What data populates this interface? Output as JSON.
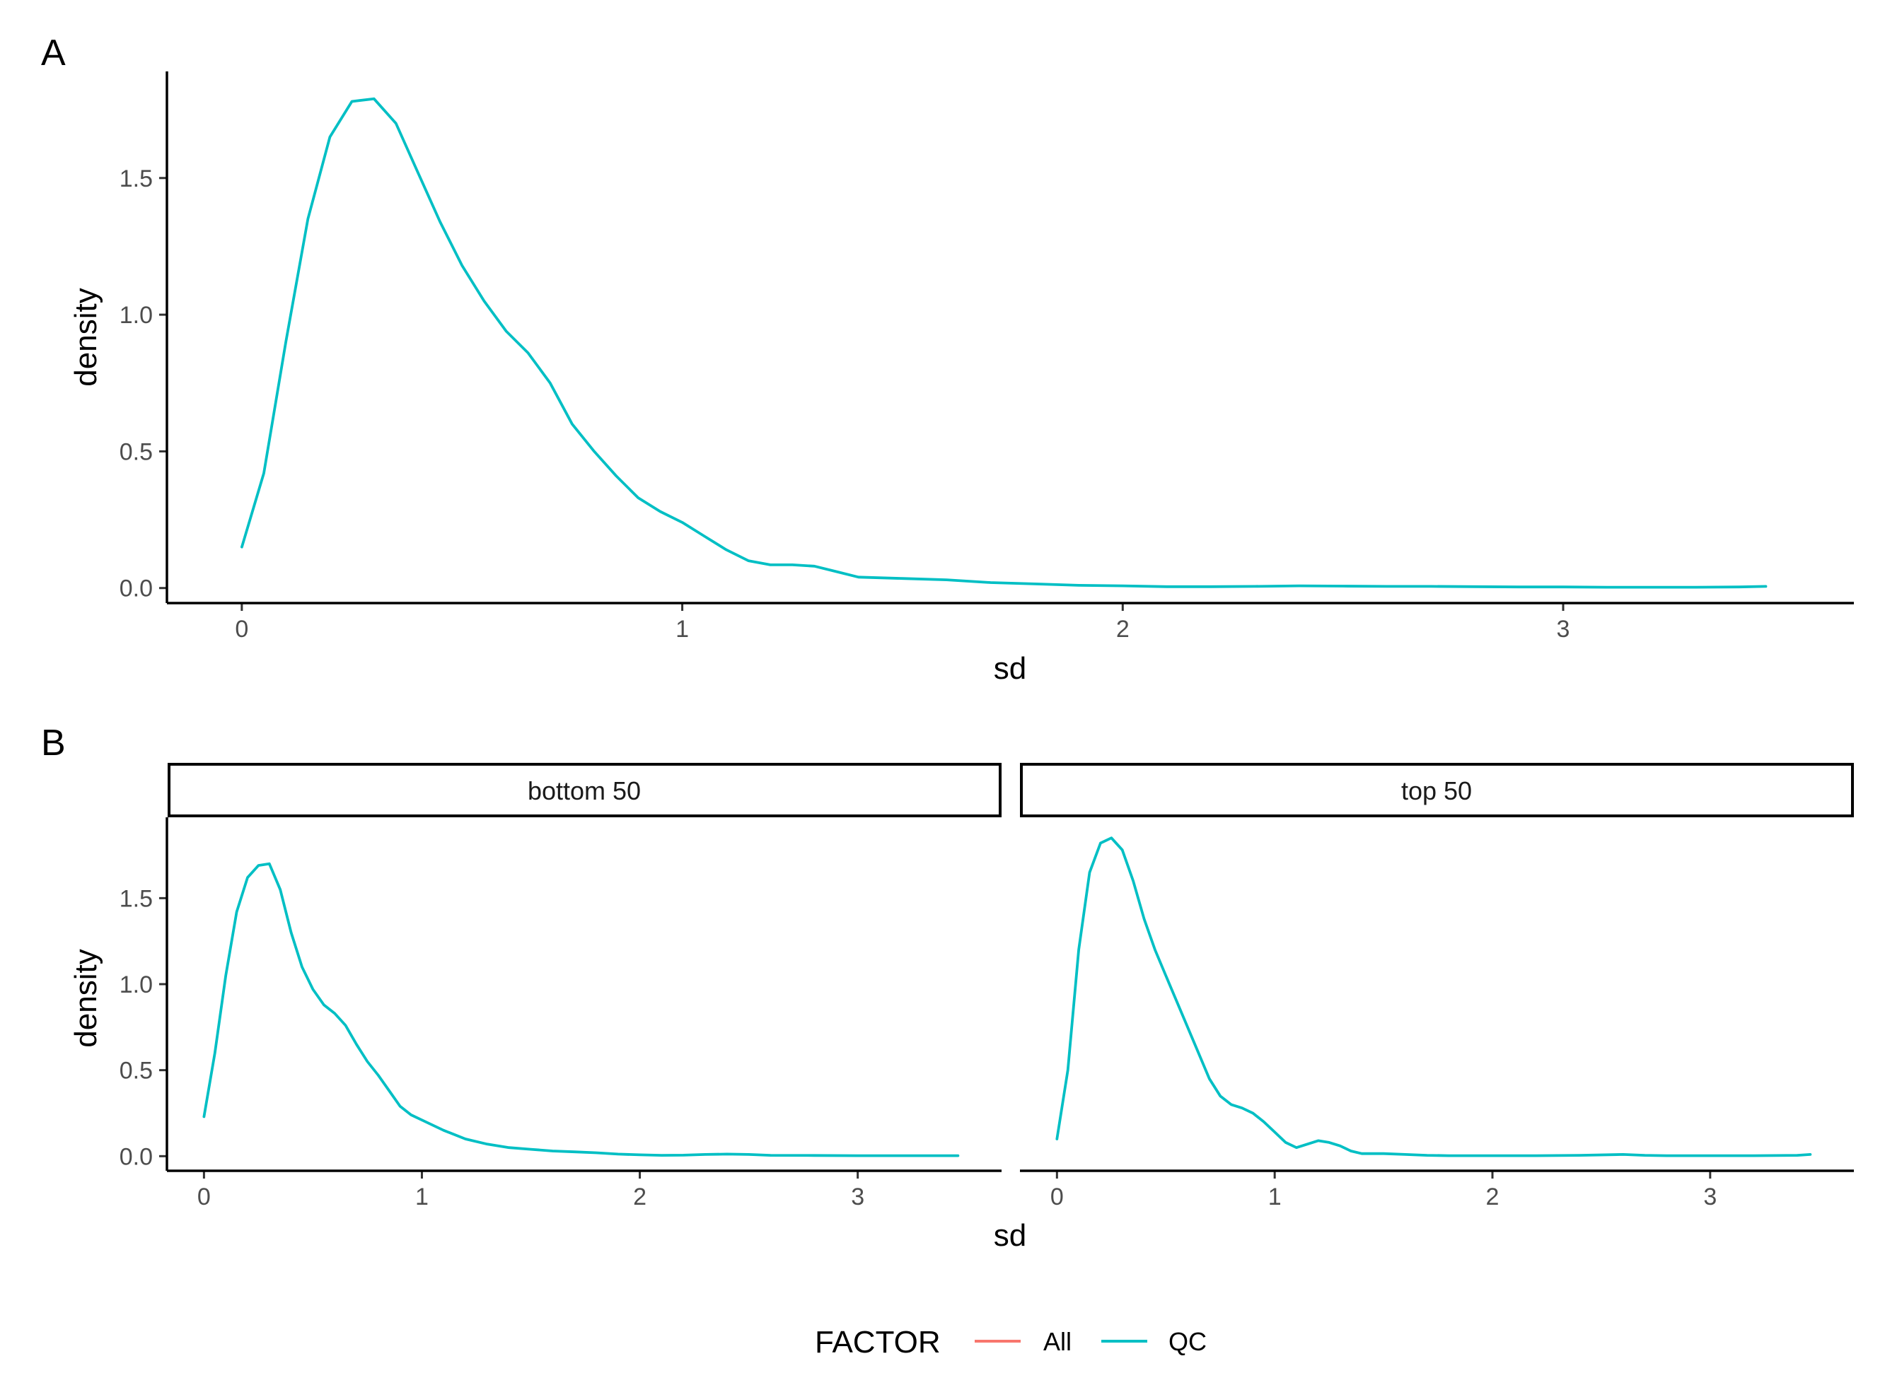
{
  "figure": {
    "panel_a_tag": "A",
    "panel_b_tag": "B"
  },
  "colors": {
    "All": "#F8766D",
    "QC": "#00BFC4"
  },
  "legend": {
    "title": "FACTOR",
    "position": "bottom",
    "items": [
      {
        "label": "All",
        "color": "#F8766D"
      },
      {
        "label": "QC",
        "color": "#00BFC4"
      }
    ]
  },
  "chart_data": [
    {
      "id": "A",
      "type": "line",
      "xlabel": "sd",
      "ylabel": "density",
      "xlim": [
        -0.17,
        3.66
      ],
      "ylim": [
        -0.055,
        1.89
      ],
      "xticks": [
        0,
        1,
        2,
        3
      ],
      "xtick_labels": [
        "0",
        "1",
        "2",
        "3"
      ],
      "yticks": [
        0,
        0.5,
        1,
        1.5
      ],
      "ytick_labels": [
        "0.0",
        "0.5",
        "1.0",
        "1.5"
      ],
      "grid": false,
      "series": [
        {
          "name": "QC",
          "color": "#00BFC4",
          "x": [
            0.0,
            0.05,
            0.1,
            0.15,
            0.2,
            0.25,
            0.3,
            0.35,
            0.4,
            0.45,
            0.5,
            0.55,
            0.6,
            0.65,
            0.7,
            0.75,
            0.8,
            0.85,
            0.9,
            0.95,
            1.0,
            1.05,
            1.1,
            1.15,
            1.2,
            1.25,
            1.3,
            1.35,
            1.4,
            1.5,
            1.6,
            1.7,
            1.8,
            1.9,
            2.0,
            2.1,
            2.2,
            2.3,
            2.4,
            2.5,
            2.6,
            2.7,
            2.8,
            2.9,
            3.0,
            3.1,
            3.2,
            3.3,
            3.4,
            3.46
          ],
          "y": [
            0.15,
            0.42,
            0.9,
            1.35,
            1.65,
            1.78,
            1.79,
            1.7,
            1.52,
            1.34,
            1.18,
            1.05,
            0.94,
            0.86,
            0.75,
            0.6,
            0.5,
            0.41,
            0.33,
            0.28,
            0.24,
            0.19,
            0.14,
            0.1,
            0.085,
            0.085,
            0.08,
            0.06,
            0.04,
            0.035,
            0.03,
            0.02,
            0.015,
            0.01,
            0.008,
            0.005,
            0.005,
            0.006,
            0.008,
            0.007,
            0.006,
            0.006,
            0.005,
            0.004,
            0.004,
            0.003,
            0.003,
            0.003,
            0.004,
            0.006
          ]
        }
      ]
    },
    {
      "id": "B",
      "type": "line",
      "facets": [
        "bottom 50",
        "top 50"
      ],
      "xlabel": "sd",
      "ylabel": "density",
      "xlim": [
        -0.17,
        3.66
      ],
      "ylim": [
        -0.085,
        1.97
      ],
      "xticks": [
        0,
        1,
        2,
        3
      ],
      "xtick_labels": [
        "0",
        "1",
        "2",
        "3"
      ],
      "yticks": [
        0,
        0.5,
        1,
        1.5
      ],
      "ytick_labels": [
        "0.0",
        "0.5",
        "1.0",
        "1.5"
      ],
      "grid": false,
      "series": [
        {
          "facet": "bottom 50",
          "name": "QC",
          "color": "#00BFC4",
          "x": [
            0.0,
            0.05,
            0.1,
            0.15,
            0.2,
            0.25,
            0.3,
            0.35,
            0.4,
            0.45,
            0.5,
            0.55,
            0.6,
            0.65,
            0.7,
            0.75,
            0.8,
            0.85,
            0.9,
            0.95,
            1.0,
            1.1,
            1.2,
            1.3,
            1.4,
            1.5,
            1.6,
            1.7,
            1.8,
            1.9,
            2.0,
            2.1,
            2.2,
            2.3,
            2.4,
            2.5,
            2.6,
            2.8,
            3.0,
            3.2,
            3.4,
            3.46
          ],
          "y": [
            0.23,
            0.6,
            1.05,
            1.42,
            1.62,
            1.69,
            1.7,
            1.55,
            1.3,
            1.1,
            0.97,
            0.88,
            0.83,
            0.76,
            0.65,
            0.55,
            0.47,
            0.38,
            0.29,
            0.24,
            0.21,
            0.15,
            0.1,
            0.07,
            0.05,
            0.04,
            0.03,
            0.025,
            0.02,
            0.012,
            0.008,
            0.005,
            0.006,
            0.01,
            0.012,
            0.01,
            0.005,
            0.004,
            0.003,
            0.003,
            0.003,
            0.003
          ]
        },
        {
          "facet": "top 50",
          "name": "QC",
          "color": "#00BFC4",
          "x": [
            0.0,
            0.05,
            0.1,
            0.15,
            0.2,
            0.25,
            0.3,
            0.35,
            0.4,
            0.45,
            0.5,
            0.55,
            0.6,
            0.65,
            0.7,
            0.75,
            0.8,
            0.85,
            0.9,
            0.95,
            1.0,
            1.05,
            1.1,
            1.15,
            1.2,
            1.25,
            1.3,
            1.35,
            1.4,
            1.5,
            1.6,
            1.7,
            1.8,
            2.0,
            2.2,
            2.4,
            2.6,
            2.7,
            2.8,
            3.0,
            3.2,
            3.4,
            3.46
          ],
          "y": [
            0.1,
            0.5,
            1.2,
            1.65,
            1.82,
            1.85,
            1.78,
            1.6,
            1.38,
            1.2,
            1.05,
            0.9,
            0.75,
            0.6,
            0.45,
            0.35,
            0.3,
            0.28,
            0.25,
            0.2,
            0.14,
            0.08,
            0.05,
            0.07,
            0.09,
            0.08,
            0.06,
            0.03,
            0.015,
            0.015,
            0.01,
            0.005,
            0.003,
            0.003,
            0.003,
            0.005,
            0.01,
            0.005,
            0.003,
            0.003,
            0.003,
            0.005,
            0.01
          ]
        }
      ]
    }
  ]
}
